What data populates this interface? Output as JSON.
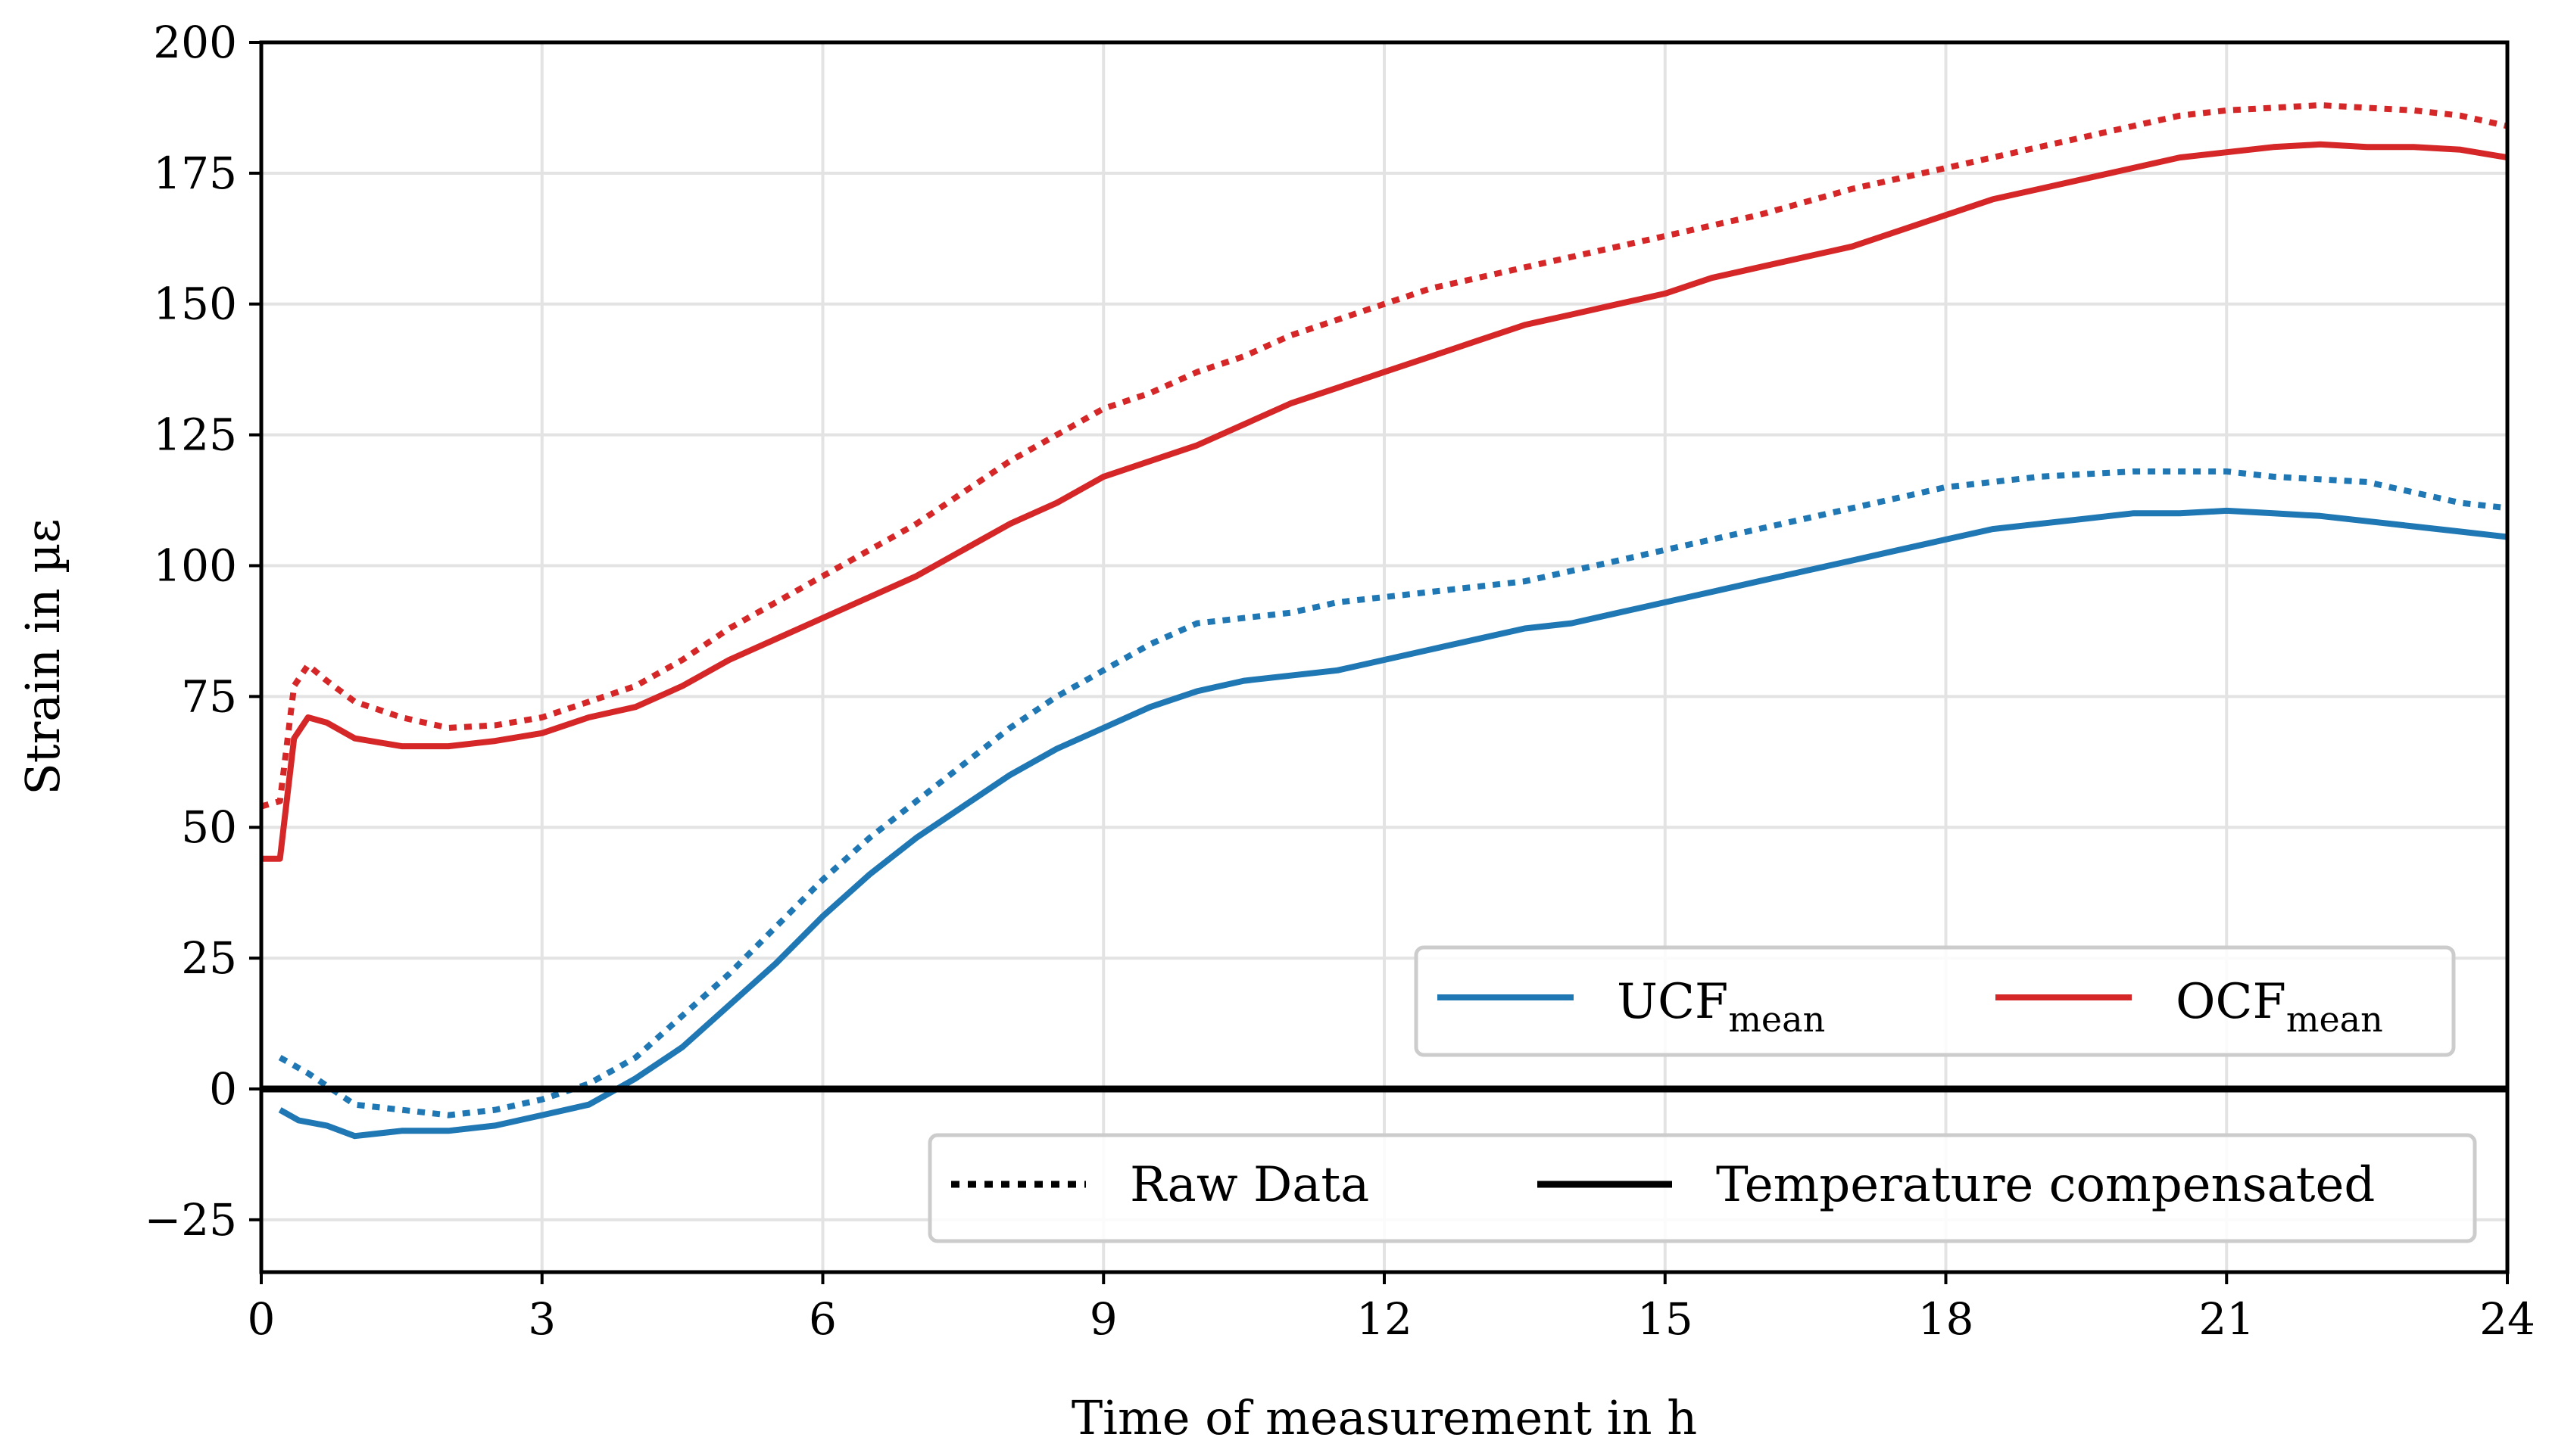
{
  "chart_data": {
    "type": "line",
    "title": "",
    "xlabel": "Time of measurement in h",
    "ylabel": "Strain in µε",
    "xlim": [
      0,
      24
    ],
    "ylim": [
      -35,
      200
    ],
    "xticks": [
      0,
      3,
      6,
      9,
      12,
      15,
      18,
      21,
      24
    ],
    "xtick_labels": [
      "0",
      "3",
      "6",
      "9",
      "12",
      "15",
      "18",
      "21",
      "24"
    ],
    "yticks": [
      -25,
      0,
      25,
      50,
      75,
      100,
      125,
      150,
      175,
      200
    ],
    "ytick_labels": [
      "−25",
      "0",
      "25",
      "50",
      "75",
      "100",
      "125",
      "150",
      "175",
      "200"
    ],
    "grid": true,
    "zero_line": 0,
    "legends": [
      {
        "location": "center-right",
        "entries": [
          {
            "base": "UCF",
            "sub": "mean",
            "color": "#1f77b4",
            "style": "solid"
          },
          {
            "base": "OCF",
            "sub": "mean",
            "color": "#d62728",
            "style": "solid"
          }
        ]
      },
      {
        "location": "lower-right",
        "entries": [
          {
            "label": "Raw Data",
            "color": "#000000",
            "style": "dotted"
          },
          {
            "label": "Temperature compensated",
            "color": "#000000",
            "style": "solid"
          }
        ]
      }
    ],
    "series": [
      {
        "name": "OCF_mean raw",
        "color": "#d62728",
        "style": "dotted",
        "x": [
          0,
          0.2,
          0.35,
          0.5,
          0.7,
          1,
          1.5,
          2,
          2.5,
          3,
          3.5,
          4,
          4.5,
          5,
          5.5,
          6,
          6.5,
          7,
          7.5,
          8,
          8.5,
          9,
          9.5,
          10,
          10.5,
          11,
          11.5,
          12,
          12.5,
          13,
          13.5,
          14,
          14.5,
          15,
          15.5,
          16,
          16.5,
          17,
          17.5,
          18,
          18.5,
          19,
          19.5,
          20,
          20.5,
          21,
          21.5,
          22,
          22.5,
          23,
          23.5,
          24
        ],
        "y": [
          54,
          55,
          77,
          81,
          78,
          74,
          71,
          69,
          69.5,
          71,
          74,
          77,
          82,
          88,
          93,
          98,
          103,
          108,
          114,
          120,
          125,
          130,
          133,
          137,
          140,
          144,
          147,
          150,
          153,
          155,
          157,
          159,
          161,
          163,
          165,
          167,
          169.5,
          172,
          174,
          176,
          178,
          180,
          182,
          184,
          186,
          187,
          187.5,
          188,
          187.5,
          187,
          186,
          184
        ]
      },
      {
        "name": "OCF_mean compensated",
        "color": "#d62728",
        "style": "solid",
        "x": [
          0,
          0.2,
          0.35,
          0.5,
          0.7,
          1,
          1.5,
          2,
          2.5,
          3,
          3.5,
          4,
          4.5,
          5,
          5.5,
          6,
          6.5,
          7,
          7.5,
          8,
          8.5,
          9,
          9.5,
          10,
          10.5,
          11,
          11.5,
          12,
          12.5,
          13,
          13.5,
          14,
          14.5,
          15,
          15.5,
          16,
          16.5,
          17,
          17.5,
          18,
          18.5,
          19,
          19.5,
          20,
          20.5,
          21,
          21.5,
          22,
          22.5,
          23,
          23.5,
          24
        ],
        "y": [
          44,
          44,
          67,
          71,
          70,
          67,
          65.5,
          65.5,
          66.5,
          68,
          71,
          73,
          77,
          82,
          86,
          90,
          94,
          98,
          103,
          108,
          112,
          117,
          120,
          123,
          127,
          131,
          134,
          137,
          140,
          143,
          146,
          148,
          150,
          152,
          155,
          157,
          159,
          161,
          164,
          167,
          170,
          172,
          174,
          176,
          178,
          179,
          180,
          180.5,
          180,
          180,
          179.5,
          178
        ]
      },
      {
        "name": "UCF_mean raw",
        "color": "#1f77b4",
        "style": "dotted",
        "x": [
          0.2,
          0.5,
          1,
          1.5,
          2,
          2.5,
          3,
          3.5,
          4,
          4.5,
          5,
          5.5,
          6,
          6.5,
          7,
          7.5,
          8,
          8.5,
          9,
          9.5,
          10,
          10.5,
          11,
          11.5,
          12,
          12.5,
          13,
          13.5,
          14,
          14.5,
          15,
          15.5,
          16,
          16.5,
          17,
          17.5,
          18,
          18.5,
          19,
          19.5,
          20,
          20.5,
          21,
          21.5,
          22,
          22.5,
          23,
          23.5,
          24
        ],
        "y": [
          6,
          3,
          -3,
          -4,
          -5,
          -4,
          -2,
          1,
          6,
          14,
          22,
          31,
          40,
          48,
          55,
          62,
          69,
          75,
          80,
          85,
          89,
          90,
          91,
          93,
          94,
          95,
          96,
          97,
          99,
          101,
          103,
          105,
          107,
          109,
          111,
          113,
          115,
          116,
          117,
          117.5,
          118,
          118,
          118,
          117,
          116.5,
          116,
          114,
          112,
          111
        ]
      },
      {
        "name": "UCF_mean compensated",
        "color": "#1f77b4",
        "style": "solid",
        "x": [
          0.2,
          0.4,
          0.7,
          1,
          1.5,
          2,
          2.5,
          3,
          3.5,
          3.8,
          4,
          4.5,
          5,
          5.5,
          6,
          6.5,
          7,
          7.5,
          8,
          8.5,
          9,
          9.5,
          10,
          10.5,
          11,
          11.5,
          12,
          12.5,
          13,
          13.5,
          14,
          14.5,
          15,
          15.5,
          16,
          16.5,
          17,
          17.5,
          18,
          18.5,
          19,
          19.5,
          20,
          20.5,
          21,
          21.5,
          22,
          22.5,
          23,
          23.5,
          24
        ],
        "y": [
          -4,
          -6,
          -7,
          -9,
          -8,
          -8,
          -7,
          -5,
          -3,
          0,
          2,
          8,
          16,
          24,
          33,
          41,
          48,
          54,
          60,
          65,
          69,
          73,
          76,
          78,
          79,
          80,
          82,
          84,
          86,
          88,
          89,
          91,
          93,
          95,
          97,
          99,
          101,
          103,
          105,
          107,
          108,
          109,
          110,
          110,
          110.5,
          110,
          109.5,
          108.5,
          107.5,
          106.5,
          105.5
        ]
      }
    ]
  }
}
